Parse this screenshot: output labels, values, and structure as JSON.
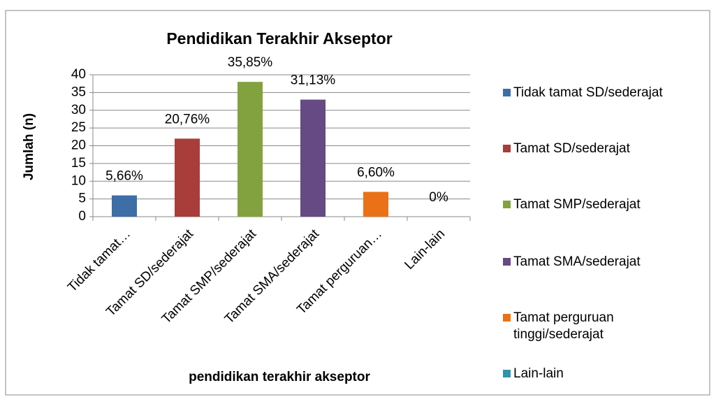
{
  "chart_data": {
    "type": "bar",
    "title": "Pendidikan Terakhir Akseptor",
    "x_label": "pendidikan terakhir akseptor",
    "y_label": "Jumlah (n)",
    "categories": [
      "Tidak tamat…",
      "Tamat SD/sederajat",
      "Tamat SMP/sederajat",
      "Tamat SMA/sederajat",
      "Tamat perguruan…",
      "Lain-lain"
    ],
    "values": [
      6,
      22,
      38,
      33,
      7,
      0
    ],
    "annotations": [
      "5,66%",
      "20,76%",
      "35,85%",
      "31,13%",
      "6,60%",
      "0%"
    ],
    "colors": [
      "#3d6ea7",
      "#a83d3a",
      "#82a240",
      "#654a84",
      "#ea7117",
      "#3192ad"
    ],
    "legend": [
      "Tidak tamat SD/sederajat",
      "Tamat SD/sederajat",
      "Tamat SMP/sederajat",
      "Tamat SMA/sederajat",
      "Tamat perguruan tinggi/sederajat",
      "Lain-lain"
    ],
    "ylim": [
      0,
      40
    ],
    "yticks": [
      0,
      5,
      10,
      15,
      20,
      25,
      30,
      35,
      40
    ],
    "grid": true
  }
}
